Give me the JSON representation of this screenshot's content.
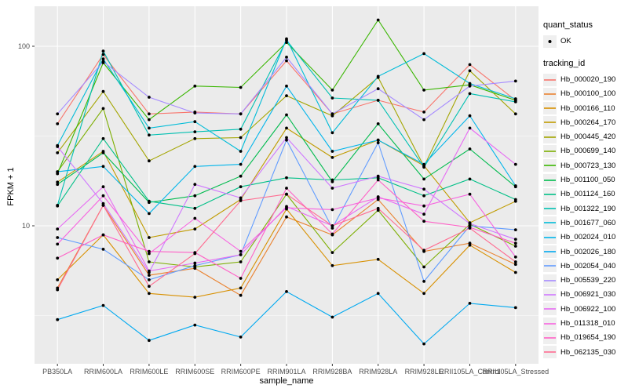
{
  "y_axis": {
    "label": "FPKM + 1",
    "tick_labels": [
      "100",
      "10"
    ],
    "tick_values": [
      100,
      10
    ]
  },
  "x_axis": {
    "label": "sample_name"
  },
  "legend": {
    "quant_title": "quant_status",
    "quant_item_label": "OK",
    "tracking_title": "tracking_id"
  },
  "chart_data": {
    "type": "line",
    "title": "",
    "xlabel": "sample_name",
    "ylabel": "FPKM + 1",
    "y_scale": "log10",
    "ylim": [
      1.7,
      164
    ],
    "grid": "on",
    "legend_position": "right",
    "panel_bg": "#EBEBEB",
    "grid_color": "#FFFFFF",
    "point_color": "#000000",
    "quant_status": [
      {
        "label": "OK",
        "marker": "point"
      }
    ],
    "x_categories": [
      "PB350LA",
      "RRIM600LA",
      "RRIM600LE",
      "RRIM600SE",
      "RRIM600PE",
      "RRIM901LA",
      "RRIM928BA",
      "RRIM928LA",
      "RRIM928LE",
      "RRII105LA_Control",
      "RRII105LA_Stressed"
    ],
    "series": [
      {
        "name": "Hb_000020_190",
        "color": "#F8766D",
        "values": [
          37,
          90,
          42,
          43,
          42,
          83,
          42,
          50,
          43,
          79,
          50
        ]
      },
      {
        "name": "Hb_000100_100",
        "color": "#EA8331",
        "values": [
          4.5,
          13,
          5.3,
          5.8,
          4.1,
          11.2,
          8.9,
          14,
          7.2,
          8.0,
          6.1
        ]
      },
      {
        "name": "Hb_000166_110",
        "color": "#D89000",
        "values": [
          5.0,
          8.9,
          4.2,
          4.0,
          4.5,
          12.4,
          6.0,
          6.5,
          4.2,
          7.8,
          5.5
        ]
      },
      {
        "name": "Hb_000264_170",
        "color": "#C09B00",
        "values": [
          17.5,
          26,
          8.6,
          9.6,
          14,
          35,
          24,
          30,
          21.6,
          10.4,
          13.7
        ]
      },
      {
        "name": "Hb_000445_420",
        "color": "#A3A500",
        "values": [
          25.5,
          56,
          23,
          30.6,
          31,
          53,
          41,
          67,
          21.4,
          73,
          42
        ]
      },
      {
        "name": "Hb_000699_140",
        "color": "#7CAE00",
        "values": [
          20,
          45,
          6.3,
          5.9,
          6.3,
          15,
          7.1,
          12.2,
          5.9,
          10.2,
          7.7
        ]
      },
      {
        "name": "Hb_000723_130",
        "color": "#39B600",
        "values": [
          19.5,
          81,
          39,
          60,
          59,
          105,
          57,
          140,
          57,
          61,
          50
        ]
      },
      {
        "name": "Hb_001100_050",
        "color": "#00BB4E",
        "values": [
          17,
          25.5,
          13.5,
          14.7,
          18.9,
          41.5,
          17.6,
          37,
          18.2,
          26.8,
          16.5
        ]
      },
      {
        "name": "Hb_001124_160",
        "color": "#00C087",
        "values": [
          12.9,
          30.6,
          13.7,
          12.5,
          16.5,
          18.5,
          18,
          18.5,
          14.7,
          18.2,
          14
        ]
      },
      {
        "name": "Hb_001322_190",
        "color": "#00C0B2",
        "values": [
          13,
          94,
          32,
          33.4,
          34.5,
          108,
          51.5,
          50,
          21.2,
          54.5,
          49
        ]
      },
      {
        "name": "Hb_001677_060",
        "color": "#00BCD8",
        "values": [
          28,
          85,
          35,
          38,
          26,
          110,
          33,
          68,
          91,
          62,
          51
        ]
      },
      {
        "name": "Hb_002024_010",
        "color": "#00B5EB",
        "values": [
          20,
          21.4,
          11.7,
          21.4,
          22,
          60,
          26,
          30,
          22,
          41,
          16.7
        ]
      },
      {
        "name": "Hb_002026_180",
        "color": "#00A9F0",
        "values": [
          3.0,
          3.6,
          2.3,
          2.8,
          2.4,
          4.3,
          3.1,
          4.2,
          2.2,
          3.7,
          3.5
        ]
      },
      {
        "name": "Hb_002054_040",
        "color": "#619CFF",
        "values": [
          8.6,
          7.4,
          5.0,
          6.0,
          6.9,
          30,
          9.7,
          29,
          4.9,
          10,
          9.5
        ]
      },
      {
        "name": "Hb_005539_220",
        "color": "#A58AFF",
        "values": [
          42,
          82,
          52,
          42.5,
          42,
          87,
          42,
          58,
          39,
          60,
          64
        ]
      },
      {
        "name": "Hb_006921_030",
        "color": "#CF78FF",
        "values": [
          27.6,
          13.3,
          5.5,
          17,
          14.3,
          31,
          16.2,
          18.9,
          16,
          10.3,
          8.4
        ]
      },
      {
        "name": "Hb_006922_100",
        "color": "#E76BF3",
        "values": [
          9.6,
          16.5,
          5.6,
          6.2,
          6.9,
          12.8,
          10,
          14.5,
          11.6,
          35,
          22
        ]
      },
      {
        "name": "Hb_011318_010",
        "color": "#F763E0",
        "values": [
          7.9,
          14.7,
          7.0,
          11,
          7.2,
          12.6,
          12.3,
          14.3,
          12.9,
          15,
          6.7
        ]
      },
      {
        "name": "Hb_019654_190",
        "color": "#FF61C7",
        "values": [
          6.6,
          8.9,
          7.2,
          7.1,
          5.1,
          16.2,
          9.0,
          18,
          10.6,
          9.8,
          8.0
        ]
      },
      {
        "name": "Hb_062135_030",
        "color": "#FF6C91",
        "values": [
          4.4,
          13,
          4.6,
          7.0,
          13.8,
          15,
          10,
          12.5,
          7.3,
          9.7,
          6.3
        ]
      }
    ]
  }
}
